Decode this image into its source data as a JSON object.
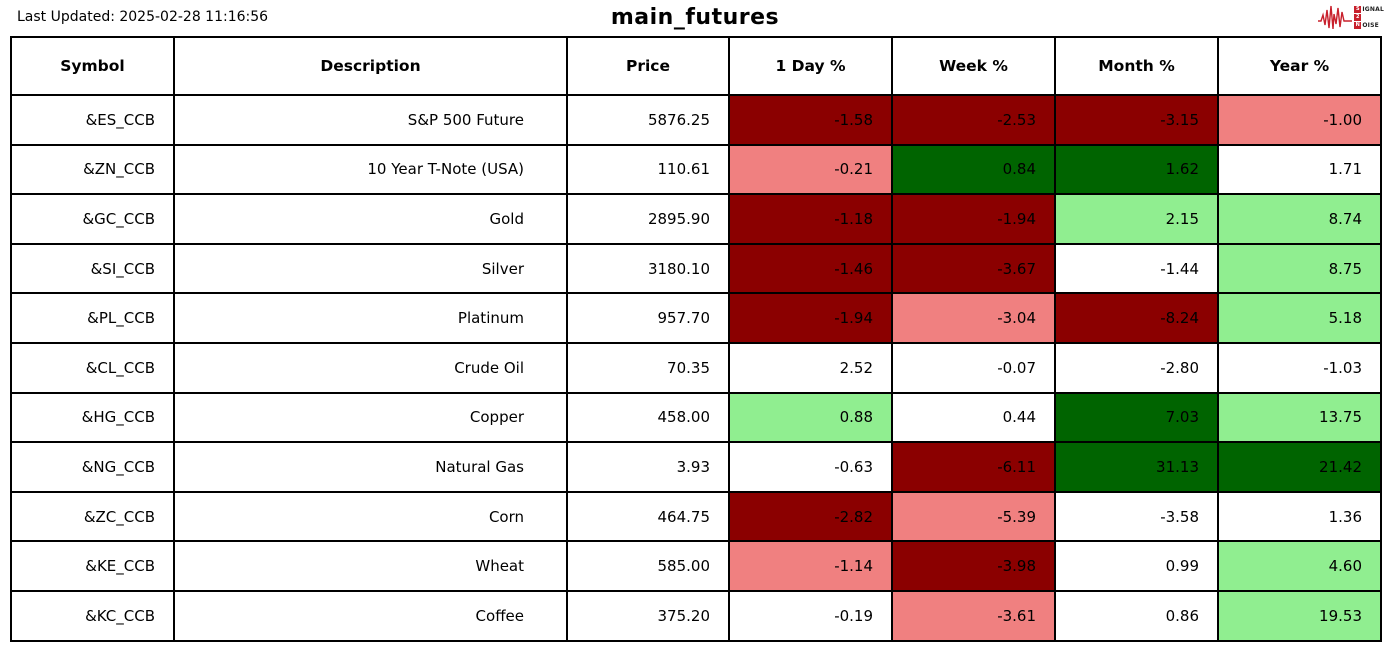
{
  "header": {
    "last_updated": "Last Updated: 2025-02-28 11:16:56",
    "title": "main_futures"
  },
  "logo": {
    "lines": [
      "SIGNAL",
      "2",
      "NOISE"
    ],
    "accent": "#c8202c"
  },
  "colors": {
    "dark_red": "#8b0000",
    "light_red": "#f08080",
    "dark_green": "#006400",
    "light_green": "#90ee90",
    "none": "#ffffff"
  },
  "table": {
    "columns": [
      "Symbol",
      "Description",
      "Price",
      "1 Day %",
      "Week %",
      "Month %",
      "Year %"
    ],
    "rows": [
      {
        "symbol": "&ES_CCB",
        "description": "S&P 500 Future",
        "price": "5876.25",
        "pct": [
          {
            "v": "-1.58",
            "c": "dark_red"
          },
          {
            "v": "-2.53",
            "c": "dark_red"
          },
          {
            "v": "-3.15",
            "c": "dark_red"
          },
          {
            "v": "-1.00",
            "c": "light_red"
          }
        ]
      },
      {
        "symbol": "&ZN_CCB",
        "description": "10 Year T-Note (USA)",
        "price": "110.61",
        "pct": [
          {
            "v": "-0.21",
            "c": "light_red"
          },
          {
            "v": "0.84",
            "c": "dark_green"
          },
          {
            "v": "1.62",
            "c": "dark_green"
          },
          {
            "v": "1.71",
            "c": "none"
          }
        ]
      },
      {
        "symbol": "&GC_CCB",
        "description": "Gold",
        "price": "2895.90",
        "pct": [
          {
            "v": "-1.18",
            "c": "dark_red"
          },
          {
            "v": "-1.94",
            "c": "dark_red"
          },
          {
            "v": "2.15",
            "c": "light_green"
          },
          {
            "v": "8.74",
            "c": "light_green"
          }
        ]
      },
      {
        "symbol": "&SI_CCB",
        "description": "Silver",
        "price": "3180.10",
        "pct": [
          {
            "v": "-1.46",
            "c": "dark_red"
          },
          {
            "v": "-3.67",
            "c": "dark_red"
          },
          {
            "v": "-1.44",
            "c": "none"
          },
          {
            "v": "8.75",
            "c": "light_green"
          }
        ]
      },
      {
        "symbol": "&PL_CCB",
        "description": "Platinum",
        "price": "957.70",
        "pct": [
          {
            "v": "-1.94",
            "c": "dark_red"
          },
          {
            "v": "-3.04",
            "c": "light_red"
          },
          {
            "v": "-8.24",
            "c": "dark_red"
          },
          {
            "v": "5.18",
            "c": "light_green"
          }
        ]
      },
      {
        "symbol": "&CL_CCB",
        "description": "Crude Oil",
        "price": "70.35",
        "pct": [
          {
            "v": "2.52",
            "c": "none"
          },
          {
            "v": "-0.07",
            "c": "none"
          },
          {
            "v": "-2.80",
            "c": "none"
          },
          {
            "v": "-1.03",
            "c": "none"
          }
        ]
      },
      {
        "symbol": "&HG_CCB",
        "description": "Copper",
        "price": "458.00",
        "pct": [
          {
            "v": "0.88",
            "c": "light_green"
          },
          {
            "v": "0.44",
            "c": "none"
          },
          {
            "v": "7.03",
            "c": "dark_green"
          },
          {
            "v": "13.75",
            "c": "light_green"
          }
        ]
      },
      {
        "symbol": "&NG_CCB",
        "description": "Natural Gas",
        "price": "3.93",
        "pct": [
          {
            "v": "-0.63",
            "c": "none"
          },
          {
            "v": "-6.11",
            "c": "dark_red"
          },
          {
            "v": "31.13",
            "c": "dark_green"
          },
          {
            "v": "21.42",
            "c": "dark_green"
          }
        ]
      },
      {
        "symbol": "&ZC_CCB",
        "description": "Corn",
        "price": "464.75",
        "pct": [
          {
            "v": "-2.82",
            "c": "dark_red"
          },
          {
            "v": "-5.39",
            "c": "light_red"
          },
          {
            "v": "-3.58",
            "c": "none"
          },
          {
            "v": "1.36",
            "c": "none"
          }
        ]
      },
      {
        "symbol": "&KE_CCB",
        "description": "Wheat",
        "price": "585.00",
        "pct": [
          {
            "v": "-1.14",
            "c": "light_red"
          },
          {
            "v": "-3.98",
            "c": "dark_red"
          },
          {
            "v": "0.99",
            "c": "none"
          },
          {
            "v": "4.60",
            "c": "light_green"
          }
        ]
      },
      {
        "symbol": "&KC_CCB",
        "description": "Coffee",
        "price": "375.20",
        "pct": [
          {
            "v": "-0.19",
            "c": "none"
          },
          {
            "v": "-3.61",
            "c": "light_red"
          },
          {
            "v": "0.86",
            "c": "none"
          },
          {
            "v": "19.53",
            "c": "light_green"
          }
        ]
      }
    ]
  }
}
